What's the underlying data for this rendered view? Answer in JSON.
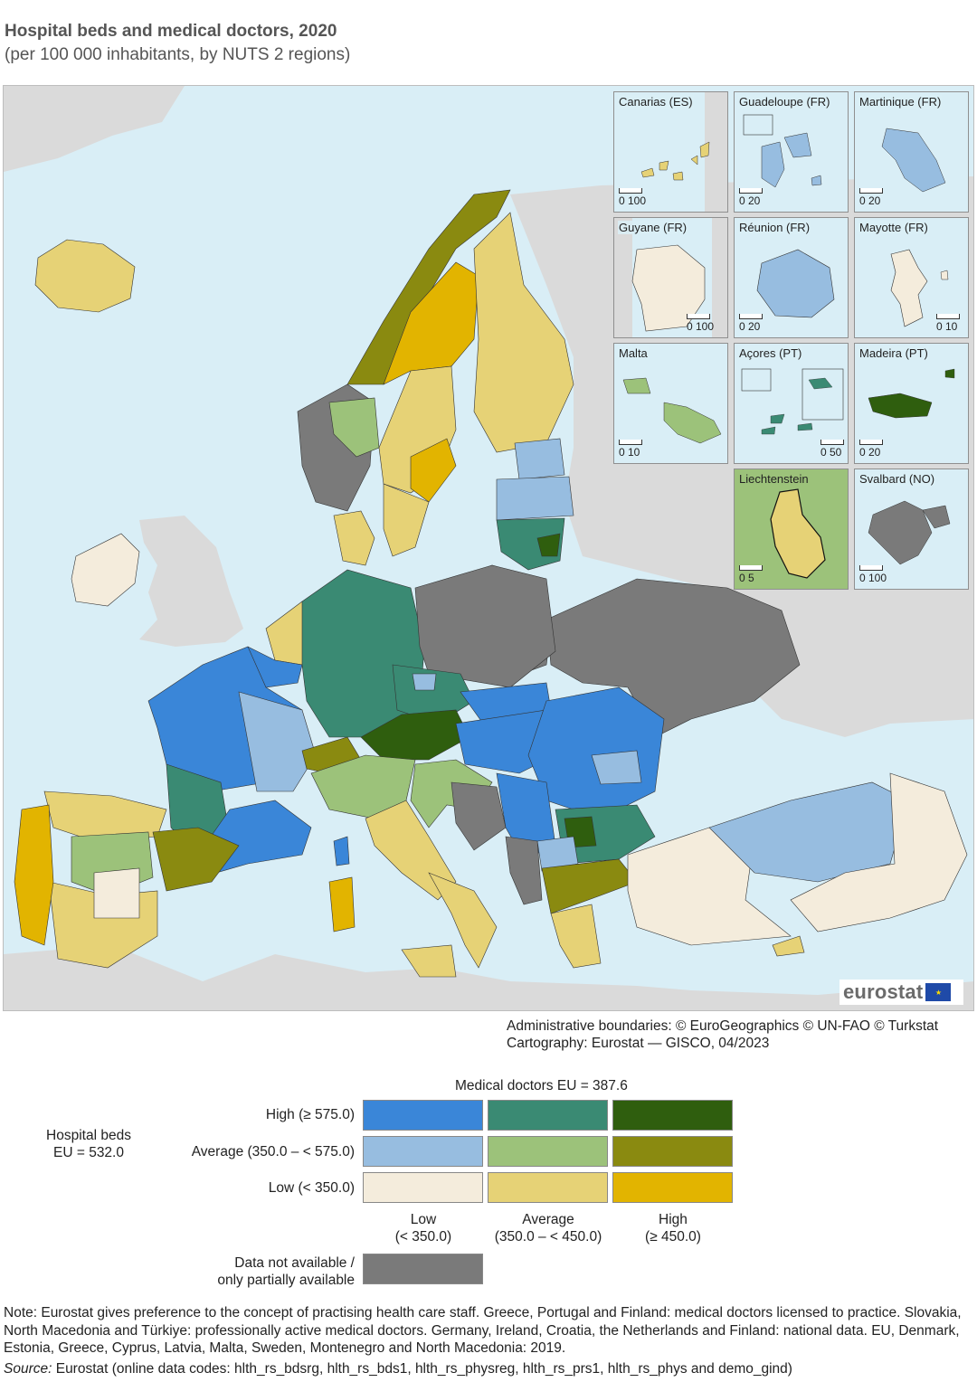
{
  "header": {
    "title": "Hospital beds and medical doctors, 2020",
    "subtitle": "(per 100 000 inhabitants, by NUTS 2 regions)"
  },
  "colors": {
    "sea": "#d9eef6",
    "non_eu_land": "#dadada",
    "no_data": "#7a7a7a",
    "beds_high_doctors_low": "#3a86d8",
    "beds_high_doctors_avg": "#3a8a73",
    "beds_high_doctors_high": "#2f5e0e",
    "beds_avg_doctors_low": "#97bde0",
    "beds_avg_doctors_avg": "#9cc27a",
    "beds_avg_doctors_high": "#8a8a10",
    "beds_low_doctors_low": "#f4ecdc",
    "beds_low_doctors_avg": "#e6d276",
    "beds_low_doctors_high": "#e2b400"
  },
  "insets": [
    {
      "name": "Canarias (ES)",
      "scale": "0  100"
    },
    {
      "name": "Guadeloupe (FR)",
      "scale": "0   20"
    },
    {
      "name": "Martinique (FR)",
      "scale": "0   20"
    },
    {
      "name": "Guyane (FR)",
      "scale": "0  100"
    },
    {
      "name": "Réunion (FR)",
      "scale": "0   20"
    },
    {
      "name": "Mayotte (FR)",
      "scale": "0   10"
    },
    {
      "name": "Malta",
      "scale": "0   10"
    },
    {
      "name": "Açores (PT)",
      "scale": "0  50"
    },
    {
      "name": "Madeira (PT)",
      "scale": "0   20"
    },
    {
      "name": "Liechtenstein",
      "scale": "0   5"
    },
    {
      "name": "Svalbard (NO)",
      "scale": "0  100"
    }
  ],
  "logo": {
    "text": "eurostat"
  },
  "credits": {
    "line1": "Administrative boundaries: © EuroGeographics © UN-FAO © Turkstat",
    "line2": "Cartography: Eurostat — GISCO, 04/2023"
  },
  "legend": {
    "doctors_title": "Medical doctors EU = 387.6",
    "beds_title_1": "Hospital beds",
    "beds_title_2": "EU = 532.0",
    "rows": [
      "High (≥ 575.0)",
      "Average (350.0 – < 575.0)",
      "Low (< 350.0)"
    ],
    "cols": [
      {
        "line1": "Low",
        "line2": "(< 350.0)"
      },
      {
        "line1": "Average",
        "line2": "(350.0 – < 450.0)"
      },
      {
        "line1": "High",
        "line2": "(≥ 450.0)"
      }
    ],
    "na_line1": "Data not available /",
    "na_line2": "only partially available"
  },
  "footer": {
    "note": "Note: Eurostat gives preference to the concept of practising health care staff. Greece, Portugal and Finland: medical doctors licensed to practice. Slovakia, North Macedonia and Türkiye: professionally active medical doctors. Germany, Ireland, Croatia, the Netherlands and Finland: national data. EU, Denmark, Estonia, Greece, Cyprus, Latvia, Malta, Sweden, Montenegro and North Macedonia: 2019.",
    "source_label": "Source:",
    "source_text": " Eurostat (online data codes: hlth_rs_bdsrg, hlth_rs_bds1, hlth_rs_physreg, hlth_rs_prs1, hlth_rs_phys and demo_gind)"
  }
}
